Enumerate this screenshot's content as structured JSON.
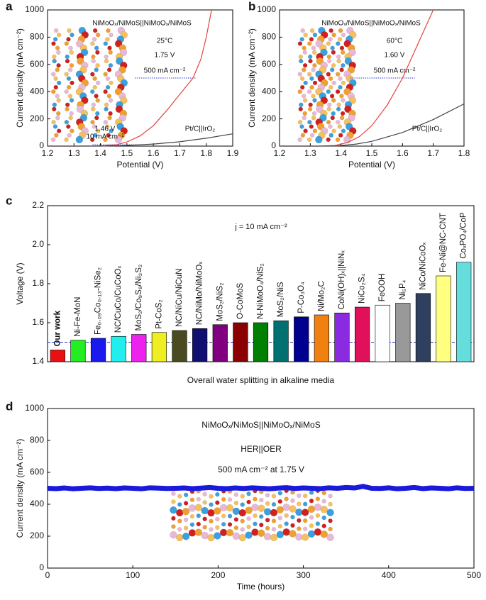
{
  "chart_data": [
    {
      "type": "line",
      "panel": "a",
      "xlabel": "Potential (V)",
      "ylabel": "Current density (mA cm⁻²)",
      "xlim": [
        1.2,
        1.9
      ],
      "xticks": [
        1.2,
        1.3,
        1.4,
        1.5,
        1.6,
        1.7,
        1.8,
        1.9
      ],
      "ylim": [
        0,
        1000
      ],
      "yticks": [
        0,
        200,
        400,
        600,
        800,
        1000
      ],
      "series": [
        {
          "name": "NiMoOₓ/NiMoS||NiMoOₓ/NiMoS",
          "color": "#e8413c",
          "x": [
            1.2,
            1.3,
            1.38,
            1.42,
            1.46,
            1.5,
            1.55,
            1.6,
            1.65,
            1.7,
            1.75,
            1.78,
            1.8,
            1.82
          ],
          "values": [
            0,
            0,
            1,
            4,
            10,
            30,
            75,
            150,
            260,
            380,
            500,
            640,
            800,
            1000
          ]
        },
        {
          "name": "Pt/C||IrO₂",
          "color": "#444444",
          "x": [
            1.2,
            1.4,
            1.5,
            1.6,
            1.7,
            1.8,
            1.9
          ],
          "values": [
            0,
            0,
            5,
            15,
            32,
            58,
            90
          ]
        }
      ],
      "reference_lines": [
        {
          "y": 500,
          "x": [
            1.53,
            1.76
          ]
        },
        {
          "y": 10,
          "x": [
            1.37,
            1.56
          ]
        }
      ],
      "annotations": [
        "25°C",
        "1.75 V",
        "500 mA cm⁻²",
        "1.46 V",
        "10 mA cm⁻²"
      ]
    },
    {
      "type": "line",
      "panel": "b",
      "xlabel": "Potential (V)",
      "ylabel": "Current density (mA cm⁻²)",
      "xlim": [
        1.2,
        1.8
      ],
      "xticks": [
        1.2,
        1.3,
        1.4,
        1.5,
        1.6,
        1.7,
        1.8
      ],
      "ylim": [
        0,
        1000
      ],
      "yticks": [
        0,
        200,
        400,
        600,
        800,
        1000
      ],
      "series": [
        {
          "name": "NiMoOₓ/NiMoS||NiMoOₓ/NiMoS",
          "color": "#e8413c",
          "x": [
            1.2,
            1.33,
            1.38,
            1.42,
            1.46,
            1.5,
            1.55,
            1.6,
            1.65,
            1.7
          ],
          "values": [
            0,
            0,
            5,
            25,
            70,
            150,
            300,
            500,
            750,
            1000
          ]
        },
        {
          "name": "Pt/C||IrO₂",
          "color": "#444444",
          "x": [
            1.2,
            1.38,
            1.45,
            1.5,
            1.6,
            1.7,
            1.8
          ],
          "values": [
            0,
            0,
            15,
            35,
            100,
            195,
            310
          ]
        }
      ],
      "reference_lines": [
        {
          "y": 500,
          "x": [
            1.43,
            1.64
          ]
        }
      ],
      "annotations": [
        "60°C",
        "1.60 V",
        "500 mA cm⁻²"
      ]
    },
    {
      "type": "bar",
      "panel": "c",
      "xlabel": "Overall water splitting in alkaline media",
      "ylabel": "Voltage (V)",
      "ylim": [
        1.4,
        2.2
      ],
      "yticks": [
        1.4,
        1.6,
        1.8,
        {
          "value": 2,
          "label": "2.0"
        },
        2.2
      ],
      "categories": [
        "Our work",
        "Ni-Fe-MoN",
        "Fe₀.₀₉Co₀.₁₃-NiSe₂",
        "NC/CuCo/CuCoOₓ",
        "MoS₂/Co₉S₈/Ni₃S₂",
        "Pt-CoS₂",
        "NC/NiCu/NiCuN",
        "NC/NiMo/NiMoOₓ",
        "MoS₂/NiS₂",
        "O-CoMoS",
        "N-NiMoO₄/NiS₂",
        "MoS₂/NiS",
        "P-Co₃O₄",
        "Ni/Mo₂C",
        "CoNi(OH)ₓ||NiNₓ",
        "NiCo₂S₄",
        "FeOOH",
        "Ni₅P₄",
        "NiCo/NiCoOₓ",
        "Fe-Ni@NC-CNT",
        "CoₓPO₄/CoP"
      ],
      "values": [
        1.46,
        1.51,
        1.52,
        1.53,
        1.54,
        1.55,
        1.56,
        1.57,
        1.59,
        1.6,
        1.6,
        1.61,
        1.63,
        1.64,
        1.65,
        1.68,
        1.69,
        1.7,
        1.75,
        1.84,
        1.91
      ],
      "colors": [
        "#e81010",
        "#22ee22",
        "#1a1aee",
        "#22eeee",
        "#ee22ee",
        "#eeee22",
        "#4a4a20",
        "#101070",
        "#800080",
        "#8b0000",
        "#008000",
        "#007070",
        "#000090",
        "#f08010",
        "#8a2be2",
        "#e0105a",
        "#ffffff",
        "#999999",
        "#2f3f5f",
        "#ffff80",
        "#66dddd"
      ],
      "reference_lines": [
        {
          "y": 1.5
        }
      ],
      "annotations": [
        "j = 10 mA cm⁻²"
      ]
    },
    {
      "type": "line",
      "panel": "d",
      "xlabel": "Time (hours)",
      "ylabel": "Current density (mA cm⁻²)",
      "xlim": [
        0,
        500
      ],
      "xticks": [
        0,
        100,
        200,
        300,
        400,
        500
      ],
      "ylim": [
        0,
        1000
      ],
      "yticks": [
        0,
        200,
        400,
        600,
        800,
        1000
      ],
      "series": [
        {
          "name": "NiMoOₓ/NiMoS||NiMoOₓ/NiMoS",
          "color": "#1a1adb",
          "x": [
            0,
            10,
            20,
            30,
            40,
            50,
            60,
            70,
            80,
            90,
            100,
            110,
            120,
            130,
            140,
            150,
            160,
            170,
            180,
            190,
            200,
            210,
            220,
            230,
            240,
            250,
            260,
            270,
            280,
            290,
            300,
            310,
            320,
            330,
            340,
            350,
            360,
            370,
            380,
            390,
            400,
            410,
            420,
            430,
            440,
            450,
            460,
            470,
            480,
            490,
            500
          ],
          "values": [
            500,
            498,
            502,
            497,
            500,
            503,
            499,
            501,
            498,
            502,
            500,
            497,
            503,
            501,
            499,
            500,
            502,
            498,
            501,
            505,
            500,
            498,
            502,
            499,
            503,
            500,
            497,
            501,
            504,
            499,
            502,
            500,
            498,
            503,
            500,
            505,
            502,
            512,
            500,
            499,
            503,
            497,
            500,
            505,
            498,
            502,
            500,
            497,
            503,
            499,
            500
          ]
        }
      ],
      "annotations": [
        "HER||OER",
        "500 mA cm⁻² at 1.75 V"
      ]
    }
  ]
}
